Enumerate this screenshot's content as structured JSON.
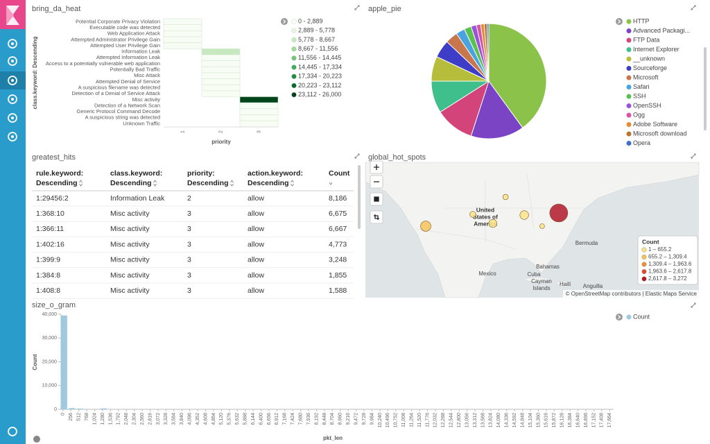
{
  "chart_data": [
    {
      "type": "heatmap",
      "title": "bring_da_heat",
      "x_label": "priority",
      "y_label": "class.keyword: Descending",
      "categories": [
        "1",
        "2",
        "3"
      ],
      "rows": [
        "Potential Corporate Privacy Violation",
        "Executable code was detected",
        "Web Application Attack",
        "Attempted Administrator Privilege Gain",
        "Attempted User Privilege Gain",
        "Information Leak",
        "Attempted Information Leak",
        "Access to a potentially vulnerable web application",
        "Potentially Bad Traffic",
        "Misc Attack",
        "Attempted Denial of Service",
        "A suspicious filename was detected",
        "Detection of a Denial of Service Attack",
        "Misc activity",
        "Detection of a Network Scan",
        "Generic Protocol Command Decode",
        "A suspicious string was detected",
        "Unknown Traffic"
      ],
      "values": [
        [
          14,
          null,
          null
        ],
        [
          9,
          null,
          null
        ],
        [
          31,
          null,
          null
        ],
        [
          6,
          null,
          null
        ],
        [
          5,
          null,
          null
        ],
        [
          null,
          8186,
          null
        ],
        [
          null,
          212,
          null
        ],
        [
          null,
          96,
          null
        ],
        [
          null,
          148,
          null
        ],
        [
          null,
          63,
          null
        ],
        [
          null,
          38,
          null
        ],
        [
          null,
          21,
          null
        ],
        [
          null,
          12,
          null
        ],
        [
          null,
          null,
          25120
        ],
        [
          null,
          null,
          410
        ],
        [
          null,
          null,
          96
        ],
        [
          null,
          null,
          52
        ],
        [
          null,
          null,
          18
        ]
      ],
      "bins": [
        0,
        2889,
        5778,
        8667,
        11556,
        14445,
        17334,
        20223,
        23112,
        26000
      ],
      "legend": [
        {
          "label": "0 - 2,889",
          "color": "#f7fcf5"
        },
        {
          "label": "2,889 - 5,778",
          "color": "#e5f5e0"
        },
        {
          "label": "5,778 - 8,667",
          "color": "#c7e9c0"
        },
        {
          "label": "8,667 - 11,556",
          "color": "#a1d99b"
        },
        {
          "label": "11,556 - 14,445",
          "color": "#74c476"
        },
        {
          "label": "14,445 - 17,334",
          "color": "#41ab5d"
        },
        {
          "label": "17,334 - 20,223",
          "color": "#238b45"
        },
        {
          "label": "20,223 - 23,112",
          "color": "#006d2c"
        },
        {
          "label": "23,112 - 26,000",
          "color": "#00441b"
        }
      ]
    },
    {
      "type": "pie",
      "title": "apple_pie",
      "categories": [
        "HTTP",
        "Advanced Packagi...",
        "FTP Data",
        "Internet Explorer",
        "__unknown",
        "Sourceforge",
        "Microsoft",
        "Safari",
        "SSH",
        "OpenSSH",
        "Ogg",
        "Adobe Software",
        "Microsoft download",
        "Opera"
      ],
      "values": [
        40,
        15,
        11,
        9,
        7,
        5,
        3.5,
        2.5,
        2,
        1.5,
        1.2,
        1,
        0.8,
        0.5
      ],
      "colors": [
        "#8bc34a",
        "#7b44c4",
        "#d3447b",
        "#3ebf8b",
        "#b5bd3a",
        "#3d3dc8",
        "#c8764c",
        "#4aa3df",
        "#5cc04e",
        "#9a52d6",
        "#d653a8",
        "#e38b36",
        "#b87333",
        "#3f6fc6"
      ]
    },
    {
      "type": "bar",
      "title": "size_o_gram",
      "x_label": "pkt_len",
      "y_label": "Count",
      "x": [
        0,
        256,
        512,
        1280
      ],
      "series": [
        {
          "name": "Count",
          "color": "#9ecae1",
          "values": [
            39500,
            500,
            300,
            400
          ]
        }
      ],
      "xlim": [
        -64,
        17792
      ],
      "ylim": [
        0,
        40000
      ],
      "yticks": [
        0,
        {
          "value": 10000,
          "label": "10,000"
        },
        {
          "value": 20000,
          "label": "20,000"
        },
        {
          "value": 30000,
          "label": "30,000"
        },
        {
          "value": 40000,
          "label": "40,000"
        }
      ],
      "xticks": [
        0,
        256,
        512,
        768,
        {
          "value": 1024,
          "label": "1,024"
        },
        {
          "value": 1280,
          "label": "1,280"
        },
        {
          "value": 1536,
          "label": "1,536"
        },
        {
          "value": 1792,
          "label": "1,792"
        },
        {
          "value": 2048,
          "label": "2,048"
        },
        {
          "value": 2304,
          "label": "2,304"
        },
        {
          "value": 2560,
          "label": "2,560"
        },
        {
          "value": 2816,
          "label": "2,816"
        },
        {
          "value": 3072,
          "label": "3,072"
        },
        {
          "value": 3328,
          "label": "3,328"
        },
        {
          "value": 3584,
          "label": "3,584"
        },
        {
          "value": 3840,
          "label": "3,840"
        },
        {
          "value": 4096,
          "label": "4,096"
        },
        {
          "value": 4352,
          "label": "4,352"
        },
        {
          "value": 4608,
          "label": "4,608"
        },
        {
          "value": 4864,
          "label": "4,864"
        },
        {
          "value": 5120,
          "label": "5,120"
        },
        {
          "value": 5376,
          "label": "5,376"
        },
        {
          "value": 5632,
          "label": "5,632"
        },
        {
          "value": 5888,
          "label": "5,888"
        },
        {
          "value": 6144,
          "label": "6,144"
        },
        {
          "value": 6400,
          "label": "6,400"
        },
        {
          "value": 6656,
          "label": "6,656"
        },
        {
          "value": 6912,
          "label": "6,912"
        },
        {
          "value": 7168,
          "label": "7,168"
        },
        {
          "value": 7424,
          "label": "7,424"
        },
        {
          "value": 7680,
          "label": "7,680"
        },
        {
          "value": 7936,
          "label": "7,936"
        },
        {
          "value": 8192,
          "label": "8,192"
        },
        {
          "value": 8448,
          "label": "8,448"
        },
        {
          "value": 8704,
          "label": "8,704"
        },
        {
          "value": 8960,
          "label": "8,960"
        },
        {
          "value": 9216,
          "label": "9,216"
        },
        {
          "value": 9472,
          "label": "9,472"
        },
        {
          "value": 9728,
          "label": "9,728"
        },
        {
          "value": 9984,
          "label": "9,984"
        },
        {
          "value": 10240,
          "label": "10,240"
        },
        {
          "value": 10496,
          "label": "10,496"
        },
        {
          "value": 10752,
          "label": "10,752"
        },
        {
          "value": 11008,
          "label": "11,008"
        },
        {
          "value": 11264,
          "label": "11,264"
        },
        {
          "value": 11520,
          "label": "11,520"
        },
        {
          "value": 11776,
          "label": "11,776"
        },
        {
          "value": 12032,
          "label": "12,032"
        },
        {
          "value": 12288,
          "label": "12,288"
        },
        {
          "value": 12544,
          "label": "12,544"
        },
        {
          "value": 12800,
          "label": "12,800"
        },
        {
          "value": 13056,
          "label": "13,056"
        },
        {
          "value": 13312,
          "label": "13,312"
        },
        {
          "value": 13568,
          "label": "13,568"
        },
        {
          "value": 13824,
          "label": "13,824"
        },
        {
          "value": 14080,
          "label": "14,080"
        },
        {
          "value": 14336,
          "label": "14,336"
        },
        {
          "value": 14592,
          "label": "14,592"
        },
        {
          "value": 14848,
          "label": "14,848"
        },
        {
          "value": 15104,
          "label": "15,104"
        },
        {
          "value": 15360,
          "label": "15,360"
        },
        {
          "value": 15616,
          "label": "15,616"
        },
        {
          "value": 15872,
          "label": "15,872"
        },
        {
          "value": 16128,
          "label": "16,128"
        },
        {
          "value": 16384,
          "label": "16,384"
        },
        {
          "value": 16640,
          "label": "16,640"
        },
        {
          "value": 16896,
          "label": "16,896"
        },
        {
          "value": 17152,
          "label": "17,152"
        },
        {
          "value": 17408,
          "label": "17,408"
        },
        {
          "value": 17664,
          "label": "17,664"
        }
      ]
    }
  ],
  "table": {
    "title": "greatest_hits",
    "columns": [
      {
        "name": "rule.keyword:",
        "sort": "Descending"
      },
      {
        "name": "class.keyword:",
        "sort": "Descending"
      },
      {
        "name": "priority:",
        "sort": "Descending"
      },
      {
        "name": "action.keyword:",
        "sort": "Descending"
      },
      {
        "name": "Count"
      }
    ],
    "rows": [
      [
        "1:29456:2",
        "Information Leak",
        "2",
        "allow",
        "8,186"
      ],
      [
        "1:368:10",
        "Misc activity",
        "3",
        "allow",
        "6,675"
      ],
      [
        "1:366:11",
        "Misc activity",
        "3",
        "allow",
        "6,667"
      ],
      [
        "1:402:16",
        "Misc activity",
        "3",
        "allow",
        "4,773"
      ],
      [
        "1:399:9",
        "Misc activity",
        "3",
        "allow",
        "3,248"
      ],
      [
        "1:384:8",
        "Misc activity",
        "3",
        "allow",
        "1,855"
      ],
      [
        "1:408:8",
        "Misc activity",
        "3",
        "allow",
        "1,588"
      ]
    ]
  },
  "map": {
    "title": "global_hot_spots",
    "places": [
      {
        "lines": [
          "United",
          "States of",
          "America"
        ]
      },
      {
        "lines": [
          "Mexico"
        ]
      },
      {
        "lines": [
          "Bermuda"
        ]
      },
      {
        "lines": [
          "Bahamas"
        ]
      },
      {
        "lines": [
          "Cuba"
        ]
      },
      {
        "lines": [
          "Cayman",
          "Islands"
        ]
      },
      {
        "lines": [
          "Haiti"
        ]
      },
      {
        "lines": [
          "Anguilla"
        ]
      }
    ],
    "points": [
      {
        "lat": 40.7,
        "lon": -74.0,
        "count": 3272
      },
      {
        "lat": 36.9,
        "lon": -118.0,
        "count": 800
      },
      {
        "lat": 37.7,
        "lon": -95.8,
        "count": 400
      },
      {
        "lat": 40.3,
        "lon": -102.4,
        "count": 150
      },
      {
        "lat": 45.3,
        "lon": -91.6,
        "count": 100
      },
      {
        "lat": 40.1,
        "lon": -85.4,
        "count": 500
      },
      {
        "lat": 36.9,
        "lon": -79.5,
        "count": 60
      }
    ],
    "bins": [
      1,
      655.2,
      1309.4,
      1963.6,
      2617.8,
      3272
    ],
    "legend_title": "Count",
    "legend": [
      {
        "label": "1 – 655.2",
        "color": "#fbe38a"
      },
      {
        "label": "655.2 – 1,309.4",
        "color": "#f6c25a"
      },
      {
        "label": "1,309.4 – 1,963.6",
        "color": "#ef8f3e"
      },
      {
        "label": "1,963.6 – 2,617.8",
        "color": "#e0483a"
      },
      {
        "label": "2,617.8 – 3,272",
        "color": "#b2182b"
      }
    ],
    "attribution": "© OpenStreetMap contributors | Elastic Maps Service"
  }
}
